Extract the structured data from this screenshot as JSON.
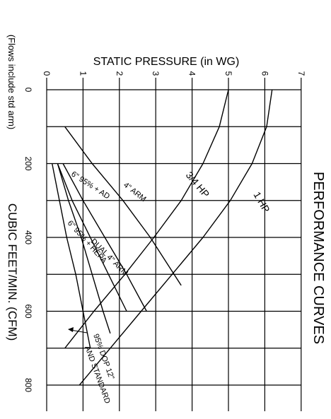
{
  "chart_data": {
    "type": "line",
    "title": "PERFORMANCE CURVES",
    "xlabel": "CUBIC FEET/MIN. (CFM)",
    "ylabel": "STATIC PRESSURE (in WG)",
    "note": "(Flows include std arm)",
    "x_range": [
      0,
      850
    ],
    "y_range": [
      0,
      7
    ],
    "x_ticks": [
      "0",
      "200",
      "400",
      "600",
      "800"
    ],
    "y_ticks": [
      "0",
      "1",
      "2",
      "3",
      "4",
      "5",
      "6",
      "7"
    ],
    "grid": true,
    "series": [
      {
        "name": "1 HP",
        "x": [
          0,
          100,
          200,
          300,
          400,
          500,
          600,
          700,
          800
        ],
        "y": [
          6.2,
          6.05,
          5.65,
          5.05,
          4.3,
          3.45,
          2.6,
          1.75,
          0.9
        ]
      },
      {
        "name": "3/4 HP",
        "x": [
          0,
          100,
          200,
          300,
          400,
          500,
          600,
          650,
          700
        ],
        "y": [
          5.0,
          4.75,
          4.3,
          3.7,
          2.95,
          2.15,
          1.3,
          0.9,
          0.5
        ]
      },
      {
        "name": "4\" ARM",
        "x": [
          100,
          200,
          300,
          400,
          530
        ],
        "y": [
          0.5,
          1.25,
          2.1,
          2.85,
          3.7
        ]
      },
      {
        "name": "6\" 95% + AD",
        "x": [
          200,
          300,
          400,
          500,
          600
        ],
        "y": [
          0.45,
          1.0,
          1.6,
          2.2,
          2.75
        ]
      },
      {
        "name": "DUAL 4\" ARM",
        "x": [
          200,
          300,
          400,
          500,
          600
        ],
        "y": [
          0.3,
          0.7,
          1.2,
          1.7,
          2.2
        ]
      },
      {
        "name": "6\" 95% + HEPA",
        "x": [
          200,
          300,
          400,
          500,
          600,
          660
        ],
        "y": [
          0.3,
          0.6,
          0.95,
          1.25,
          1.55,
          1.75
        ]
      },
      {
        "name": "95% DOP 12\" AND STANDARD",
        "x": [
          200,
          300,
          400,
          500,
          600,
          700
        ],
        "y": [
          0.15,
          0.35,
          0.55,
          0.8,
          1.0,
          1.2
        ]
      }
    ],
    "labels": {
      "hp1": "1 HP",
      "hp34": "3/4 HP",
      "arm4": "4\" ARM",
      "ad": "6\" 95% + AD",
      "dual": "DUAL 4\" ARM",
      "hepa": "6\" 95% + HEPA",
      "dop": "95% DOP 12\"",
      "std": "AND STANDARD"
    }
  }
}
